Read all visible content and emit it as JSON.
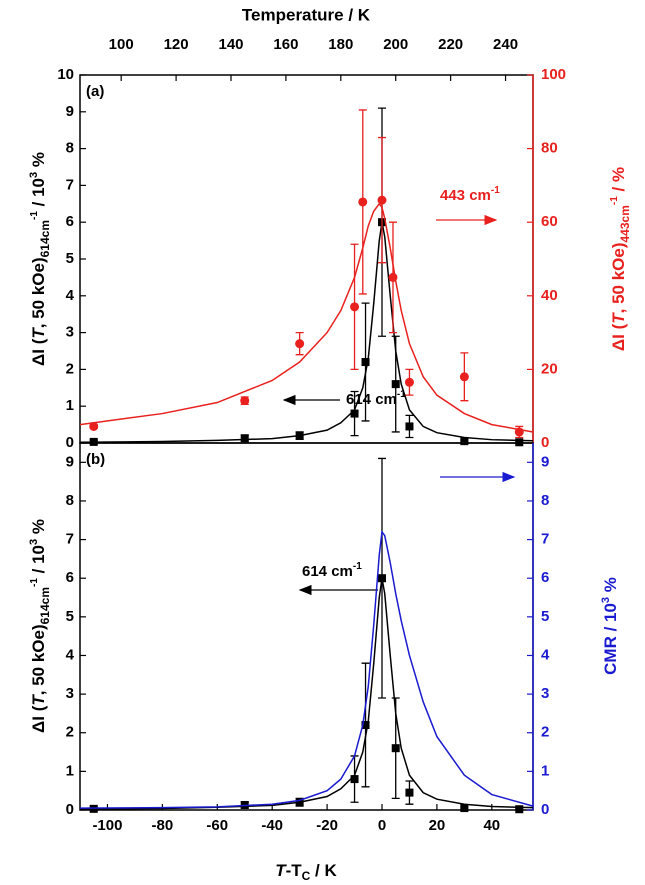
{
  "chart_data": [
    {
      "type": "scatter",
      "panel_label": "(a)",
      "x2label": "Temperature / K",
      "xlim": [
        -110,
        55
      ],
      "x2lim": [
        85,
        250
      ],
      "x2ticks": [
        100,
        120,
        140,
        160,
        180,
        200,
        220,
        240
      ],
      "ylim": [
        0,
        10
      ],
      "yticks": [
        0,
        1,
        2,
        3,
        4,
        5,
        6,
        7,
        8,
        9,
        10
      ],
      "ylabel": [
        "ΔI (",
        "T",
        ", 50 kOe)",
        "614cm",
        "-1",
        " / 10",
        "3",
        " %"
      ],
      "y2lim": [
        0,
        100
      ],
      "y2ticks": [
        0,
        20,
        40,
        60,
        80,
        100
      ],
      "y2color": "#e8201e",
      "y2label": [
        "ΔI (",
        "T",
        ", 50 kOe)",
        "443cm",
        "-1",
        " / %"
      ],
      "series": [
        {
          "color": "#000000",
          "marker": "square",
          "x": [
            -105,
            -50,
            -30,
            -10,
            -6,
            0,
            5,
            10,
            30,
            50
          ],
          "values": [
            0.03,
            0.13,
            0.2,
            0.8,
            2.2,
            6.0,
            1.6,
            0.45,
            0.05,
            0.02
          ],
          "errors": [
            0.05,
            0.08,
            0.1,
            0.6,
            1.6,
            3.1,
            1.3,
            0.3,
            0.03,
            0.03
          ],
          "fit_x": [
            -110,
            -80,
            -60,
            -40,
            -30,
            -20,
            -15,
            -10,
            -7,
            -5,
            -3,
            -1,
            0,
            1,
            3,
            5,
            7,
            10,
            15,
            20,
            30,
            40,
            55
          ],
          "fit": [
            0.02,
            0.04,
            0.07,
            0.12,
            0.2,
            0.35,
            0.55,
            0.9,
            1.5,
            2.3,
            3.8,
            5.5,
            6.0,
            5.6,
            4.0,
            2.5,
            1.6,
            0.9,
            0.45,
            0.28,
            0.15,
            0.09,
            0.06
          ],
          "label": [
            "614 cm",
            "-1"
          ]
        },
        {
          "color": "#e8201e",
          "marker": "circle",
          "axis": "y2",
          "x": [
            -105,
            -50,
            -30,
            -10,
            -7,
            0,
            4,
            10,
            30,
            50
          ],
          "values": [
            4.5,
            11.5,
            27,
            37,
            65.5,
            66,
            45,
            16.5,
            18,
            3
          ],
          "errors": [
            0.5,
            1,
            3,
            17,
            25,
            17,
            15,
            3.5,
            6.5,
            1.5
          ],
          "fit_x": [
            -110,
            -80,
            -60,
            -40,
            -30,
            -20,
            -15,
            -10,
            -7,
            -5,
            -3,
            -1,
            0,
            1,
            3,
            5,
            7,
            10,
            15,
            20,
            30,
            40,
            55
          ],
          "fit": [
            5,
            8,
            11,
            17,
            22,
            30,
            36,
            45,
            53,
            59,
            63,
            65,
            64,
            61,
            53,
            44,
            36,
            27,
            18,
            13,
            8,
            5,
            3
          ],
          "label": [
            "443 cm",
            "-1"
          ]
        }
      ]
    },
    {
      "type": "scatter",
      "panel_label": "(b)",
      "xlabel": [
        "T",
        "-T",
        "C",
        " / K"
      ],
      "xlim": [
        -110,
        55
      ],
      "xticks": [
        -100,
        -80,
        -60,
        -40,
        -20,
        0,
        20,
        40
      ],
      "ylim": [
        0,
        9.5
      ],
      "yticks": [
        0,
        1,
        2,
        3,
        4,
        5,
        6,
        7,
        8,
        9
      ],
      "ylabel": [
        "ΔI (",
        "T",
        ", 50 kOe)",
        "614cm",
        "-1",
        " / 10",
        "3",
        " %"
      ],
      "y2lim": [
        0,
        9.5
      ],
      "y2ticks": [
        0,
        1,
        2,
        3,
        4,
        5,
        6,
        7,
        8,
        9
      ],
      "y2color": "#1a1ad0",
      "y2label": [
        "CMR / 10",
        "3",
        " %"
      ],
      "series": [
        {
          "color": "#000000",
          "marker": "square",
          "x": [
            -105,
            -50,
            -30,
            -10,
            -6,
            0,
            5,
            10,
            30,
            50
          ],
          "values": [
            0.03,
            0.13,
            0.2,
            0.8,
            2.2,
            6.0,
            1.6,
            0.45,
            0.05,
            0.02
          ],
          "errors": [
            0.05,
            0.08,
            0.1,
            0.6,
            1.6,
            3.1,
            1.3,
            0.3,
            0.03,
            0.03
          ],
          "fit_x": [
            -110,
            -80,
            -60,
            -40,
            -30,
            -20,
            -15,
            -10,
            -7,
            -5,
            -3,
            -1,
            0,
            1,
            3,
            5,
            7,
            10,
            15,
            20,
            30,
            40,
            55
          ],
          "fit": [
            0.02,
            0.04,
            0.07,
            0.12,
            0.2,
            0.35,
            0.55,
            0.9,
            1.5,
            2.3,
            3.8,
            5.5,
            6.0,
            5.6,
            4.0,
            2.5,
            1.6,
            0.9,
            0.45,
            0.28,
            0.15,
            0.09,
            0.06
          ],
          "label": [
            "614 cm",
            "-1"
          ]
        },
        {
          "color": "#1a1ad0",
          "axis": "y2",
          "fit_x": [
            -110,
            -80,
            -60,
            -40,
            -30,
            -20,
            -15,
            -10,
            -7,
            -5,
            -3,
            -1,
            0,
            1,
            3,
            5,
            7,
            10,
            15,
            20,
            30,
            40,
            55
          ],
          "fit": [
            0.05,
            0.06,
            0.08,
            0.15,
            0.25,
            0.5,
            0.8,
            1.4,
            2.2,
            3.2,
            4.8,
            6.6,
            7.2,
            7.1,
            6.4,
            5.6,
            4.9,
            4.0,
            2.8,
            1.9,
            0.9,
            0.4,
            0.1
          ]
        }
      ]
    }
  ]
}
